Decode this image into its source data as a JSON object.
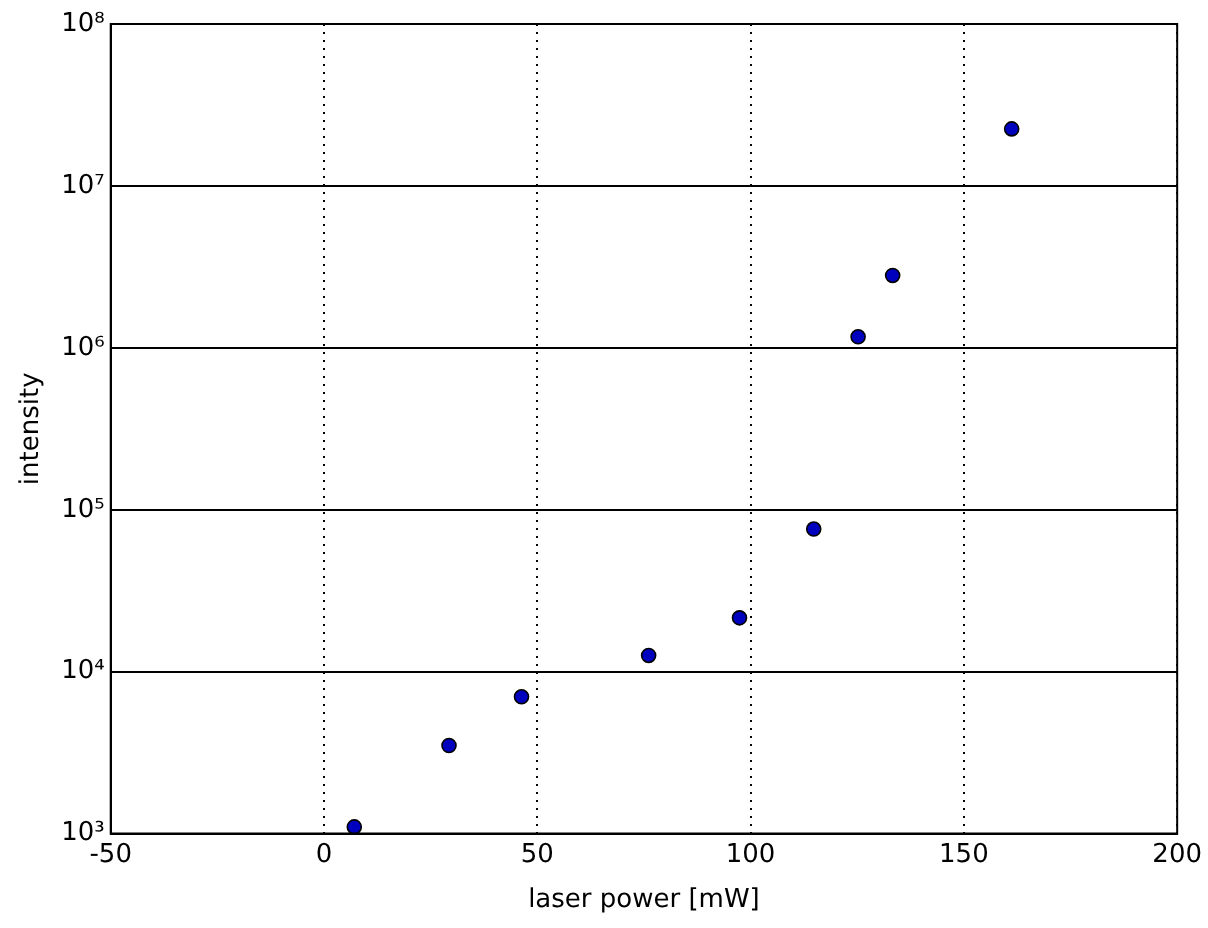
{
  "chart_data": {
    "type": "scatter",
    "xlabel": "laser power [mW]",
    "ylabel": "intensity",
    "x": [
      7.1,
      29.3,
      46.3,
      76.1,
      97.4,
      114.8,
      125.2,
      133.3,
      161.2
    ],
    "values": [
      1100,
      3500,
      7000,
      12600,
      21500,
      76000,
      1170000,
      2800000,
      22500000
    ],
    "color": "#0000bf",
    "marker": "circle",
    "log": "y",
    "grid": true,
    "line_style": "dotted",
    "xlim": [
      -50,
      200
    ],
    "xticks": [
      -50,
      0,
      50,
      100,
      150,
      200
    ],
    "ylim": [
      1000,
      100000000
    ],
    "yticks": [
      {
        "value": 1000,
        "label": "10³"
      },
      {
        "value": 10000,
        "label": "10⁴"
      },
      {
        "value": 100000,
        "label": "10⁵"
      },
      {
        "value": 1000000,
        "label": "10⁶"
      },
      {
        "value": 10000000,
        "label": "10⁷"
      },
      {
        "value": 100000000,
        "label": "10⁸"
      }
    ]
  }
}
